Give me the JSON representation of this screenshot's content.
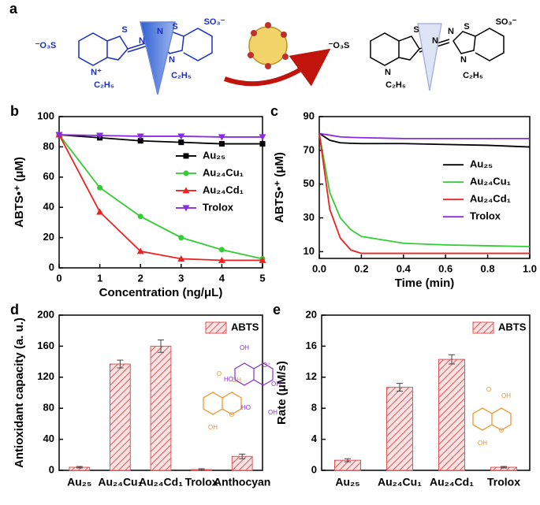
{
  "scheme": {
    "label": "a",
    "left_texts": [
      "⁻O₃S",
      "S",
      "N",
      "N",
      "S",
      "SO₃⁻",
      "N⁺",
      "N",
      "C₂H₅",
      "C₂H₅"
    ],
    "right_texts": [
      "⁻O₃S",
      "S",
      "N",
      "N",
      "S",
      "SO₃⁻",
      "N",
      "N",
      "C₂H₅",
      "C₂H₅"
    ]
  },
  "structures": {
    "trolox": [
      "O",
      "OH",
      "O",
      "OH"
    ],
    "anthocyanin": [
      "OH",
      "HO",
      "O⁺",
      "OH",
      "HO",
      "OH"
    ]
  },
  "chart_data": [
    {
      "label": "b",
      "type": "line",
      "markers": true,
      "legend": "center right",
      "xlabel": "Concentration (ng/μL)",
      "ylabel": "ABTS•⁺ (μM)",
      "x": [
        0,
        1,
        2,
        3,
        4,
        5
      ],
      "xlim": [
        0,
        5
      ],
      "xticks": [
        0,
        1,
        2,
        3,
        4,
        5
      ],
      "ylim": [
        0,
        100
      ],
      "yticks": [
        0,
        20,
        40,
        60,
        80,
        100
      ],
      "series": [
        {
          "name": "Au₂₅",
          "color": "#000000",
          "marker": "square",
          "values": [
            88,
            86,
            84,
            83,
            82,
            82
          ]
        },
        {
          "name": "Au₂₄Cu₁",
          "color": "#33cc33",
          "marker": "circle",
          "values": [
            88,
            53,
            34,
            20,
            12,
            6
          ]
        },
        {
          "name": "Au₂₄Cd₁",
          "color": "#ee2222",
          "marker": "triangle",
          "values": [
            88,
            37,
            11,
            6,
            5,
            5
          ]
        },
        {
          "name": "Trolox",
          "color": "#8a2be2",
          "marker": "triangle-down",
          "values": [
            88,
            87.5,
            87,
            87,
            86.5,
            86.5
          ]
        }
      ]
    },
    {
      "label": "c",
      "type": "line",
      "markers": false,
      "legend": "center right",
      "xlabel": "Time (min)",
      "ylabel": "ABTS•⁺ (μM)",
      "x": [
        0,
        0.05,
        0.1,
        0.15,
        0.2,
        0.4,
        0.6,
        0.8,
        1.0
      ],
      "xlim": [
        0,
        1
      ],
      "xticks": [
        {
          "value": 0,
          "label": "0.0"
        },
        0.2,
        0.4,
        0.6,
        0.8,
        {
          "value": 1,
          "label": "1.0"
        }
      ],
      "ylim": [
        6,
        90
      ],
      "yticks": [
        10,
        30,
        50,
        70,
        90
      ],
      "series": [
        {
          "name": "Au₂₅",
          "color": "#000000",
          "values": [
            80,
            76,
            74.5,
            74.2,
            74,
            74,
            73.5,
            73,
            72
          ]
        },
        {
          "name": "Au₂₄Cu₁",
          "color": "#33cc33",
          "values": [
            80,
            45,
            30,
            23,
            19,
            15,
            14,
            13.5,
            13
          ]
        },
        {
          "name": "Au₂₄Cd₁",
          "color": "#ee2222",
          "values": [
            80,
            35,
            18,
            11,
            9,
            9,
            9,
            9,
            9
          ]
        },
        {
          "name": "Trolox",
          "color": "#8a2be2",
          "values": [
            80,
            79,
            78,
            77.7,
            77.5,
            77,
            77,
            77,
            77
          ]
        }
      ]
    },
    {
      "label": "d",
      "type": "bar",
      "legend": "upper right",
      "ylabel": "Antioxidant capacity (a. u.)",
      "categories": [
        "Au₂₅",
        "Au₂₄Cu₁",
        "Au₂₄Cd₁",
        "Trolox",
        "Anthocyan"
      ],
      "ylim": [
        0,
        200
      ],
      "yticks": [
        0,
        40,
        80,
        120,
        160,
        200
      ],
      "series": [
        {
          "name": "ABTS",
          "color": "#e05555",
          "values": [
            4,
            137,
            160,
            1,
            18
          ],
          "errors": [
            1,
            5,
            8,
            1,
            3
          ]
        }
      ]
    },
    {
      "label": "e",
      "type": "bar",
      "legend": "upper right",
      "ylabel": "Rate (μM/s)",
      "categories": [
        "Au₂₅",
        "Au₂₄Cu₁",
        "Au₂₄Cd₁",
        "Trolox"
      ],
      "ylim": [
        0,
        20
      ],
      "yticks": [
        0,
        4,
        8,
        12,
        16,
        20
      ],
      "series": [
        {
          "name": "ABTS",
          "color": "#e05555",
          "values": [
            1.3,
            10.7,
            14.3,
            0.4
          ],
          "errors": [
            0.2,
            0.5,
            0.6,
            0.1
          ]
        }
      ]
    }
  ]
}
